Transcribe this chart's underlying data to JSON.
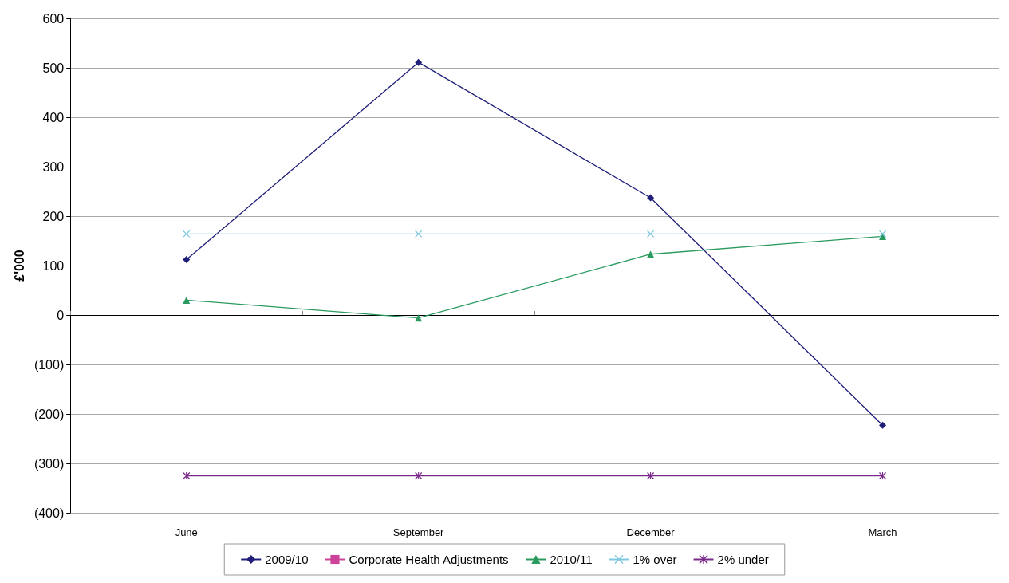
{
  "chart_data": {
    "type": "line",
    "ylabel": "£'000",
    "categories": [
      "June",
      "September",
      "December",
      "March"
    ],
    "series": [
      {
        "name": "2009/10",
        "color": "#1f1f7a",
        "values": [
          112,
          511,
          237,
          -223
        ],
        "marker": "diamond"
      },
      {
        "name": "Corporate Health Adjustments",
        "color": "#cc4499",
        "values": [
          null,
          null,
          null,
          null
        ],
        "marker": "square"
      },
      {
        "name": "2010/11",
        "color": "#2a9a5e",
        "values": [
          30,
          -6,
          123,
          159
        ],
        "marker": "triangle"
      },
      {
        "name": "1% over",
        "color": "#7fc8e0",
        "values": [
          164,
          164,
          164,
          164
        ],
        "marker": "cross"
      },
      {
        "name": "2% under",
        "color": "#7a2a8a",
        "values": [
          -325,
          -325,
          -325,
          -325
        ],
        "marker": "star"
      }
    ],
    "ylim": [
      -400,
      600
    ],
    "yticks": [
      {
        "value": -400,
        "label": "(400)"
      },
      {
        "value": -300,
        "label": "(300)"
      },
      {
        "value": -200,
        "label": "(200)"
      },
      {
        "value": -100,
        "label": "(100)"
      },
      0,
      100,
      200,
      300,
      400,
      500,
      600
    ],
    "grid": "y",
    "legend": "bottom",
    "line_style": "solid"
  }
}
